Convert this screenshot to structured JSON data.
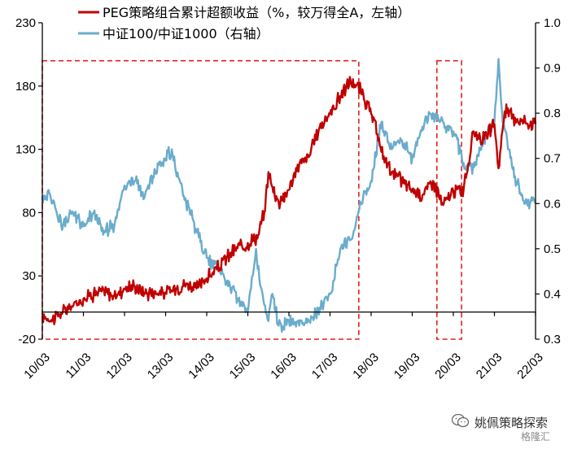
{
  "chart_data": {
    "type": "line",
    "title": "",
    "xlabel": "",
    "ylabel": "",
    "x_tick_labels": [
      "10/03",
      "11/03",
      "12/03",
      "13/03",
      "14/03",
      "15/03",
      "16/03",
      "17/03",
      "18/03",
      "19/03",
      "20/03",
      "21/03",
      "22/03"
    ],
    "y_left": {
      "lim": [
        -20,
        230
      ],
      "ticks": [
        -20,
        30,
        80,
        130,
        180,
        230
      ],
      "tick_labels": [
        "-20",
        "30",
        "80",
        "130",
        "180",
        "230"
      ]
    },
    "y_right": {
      "lim": [
        0.3,
        1.0
      ],
      "ticks": [
        0.3,
        0.4,
        0.5,
        0.6,
        0.7,
        0.8,
        0.9,
        1.0
      ],
      "tick_labels": [
        "0.3",
        "0.4",
        "0.5",
        "0.6",
        "0.7",
        "0.8",
        "0.9",
        "1.0"
      ]
    },
    "x_range": [
      2010.0,
      2022.0
    ],
    "series": [
      {
        "name": "PEG策略组合累计超额收益（%，较万得全A，左轴）",
        "axis": "left",
        "color": "#c00000",
        "x": [
          2010.0,
          2010.25,
          2010.5,
          2010.75,
          2011.0,
          2011.25,
          2011.5,
          2011.75,
          2012.0,
          2012.25,
          2012.5,
          2012.75,
          2013.0,
          2013.25,
          2013.5,
          2013.75,
          2014.0,
          2014.25,
          2014.5,
          2014.75,
          2015.0,
          2015.25,
          2015.4,
          2015.5,
          2015.6,
          2015.75,
          2016.0,
          2016.25,
          2016.5,
          2016.75,
          2017.0,
          2017.25,
          2017.5,
          2017.75,
          2018.0,
          2018.15,
          2018.25,
          2018.5,
          2018.75,
          2019.0,
          2019.25,
          2019.5,
          2019.75,
          2020.0,
          2020.25,
          2020.5,
          2020.75,
          2021.0,
          2021.1,
          2021.25,
          2021.5,
          2021.75,
          2022.0
        ],
        "values": [
          -2,
          -4,
          2,
          6,
          12,
          16,
          18,
          14,
          20,
          22,
          16,
          18,
          17,
          20,
          24,
          20,
          28,
          35,
          45,
          52,
          56,
          62,
          80,
          112,
          100,
          88,
          98,
          118,
          125,
          148,
          158,
          172,
          184,
          176,
          158,
          142,
          128,
          112,
          105,
          98,
          94,
          105,
          86,
          97,
          98,
          144,
          138,
          150,
          115,
          160,
          155,
          152,
          150
        ]
      },
      {
        "name": "中证100/中证1000（右轴）",
        "axis": "right",
        "color": "#6aaccc",
        "x": [
          2010.0,
          2010.15,
          2010.35,
          2010.5,
          2010.75,
          2011.0,
          2011.25,
          2011.5,
          2011.75,
          2012.0,
          2012.25,
          2012.5,
          2012.75,
          2013.0,
          2013.15,
          2013.25,
          2013.5,
          2013.75,
          2014.0,
          2014.25,
          2014.5,
          2014.75,
          2015.0,
          2015.2,
          2015.3,
          2015.5,
          2015.6,
          2015.75,
          2016.0,
          2016.25,
          2016.5,
          2016.75,
          2017.0,
          2017.25,
          2017.5,
          2017.75,
          2018.0,
          2018.25,
          2018.5,
          2018.75,
          2019.0,
          2019.25,
          2019.5,
          2019.75,
          2020.0,
          2020.25,
          2020.5,
          2020.75,
          2021.0,
          2021.1,
          2021.2,
          2021.35,
          2021.5,
          2021.75,
          2022.0
        ],
        "values": [
          0.6,
          0.63,
          0.58,
          0.55,
          0.58,
          0.55,
          0.58,
          0.54,
          0.55,
          0.64,
          0.65,
          0.62,
          0.67,
          0.7,
          0.72,
          0.67,
          0.6,
          0.54,
          0.48,
          0.46,
          0.43,
          0.39,
          0.36,
          0.5,
          0.42,
          0.34,
          0.4,
          0.33,
          0.34,
          0.33,
          0.34,
          0.37,
          0.4,
          0.5,
          0.52,
          0.6,
          0.65,
          0.78,
          0.72,
          0.74,
          0.7,
          0.77,
          0.8,
          0.78,
          0.76,
          0.69,
          0.68,
          0.74,
          0.78,
          0.92,
          0.78,
          0.72,
          0.66,
          0.6,
          0.6
        ]
      }
    ]
  },
  "highlight_boxes": [
    {
      "x_from": 2010.0,
      "x_to": 2017.7,
      "y_from": -20,
      "y_to": 200
    },
    {
      "x_from": 2019.6,
      "x_to": 2020.2,
      "y_from": -20,
      "y_to": 200
    }
  ],
  "watermark": {
    "text": "姚佩策略探索",
    "brand": "格隆汇"
  }
}
